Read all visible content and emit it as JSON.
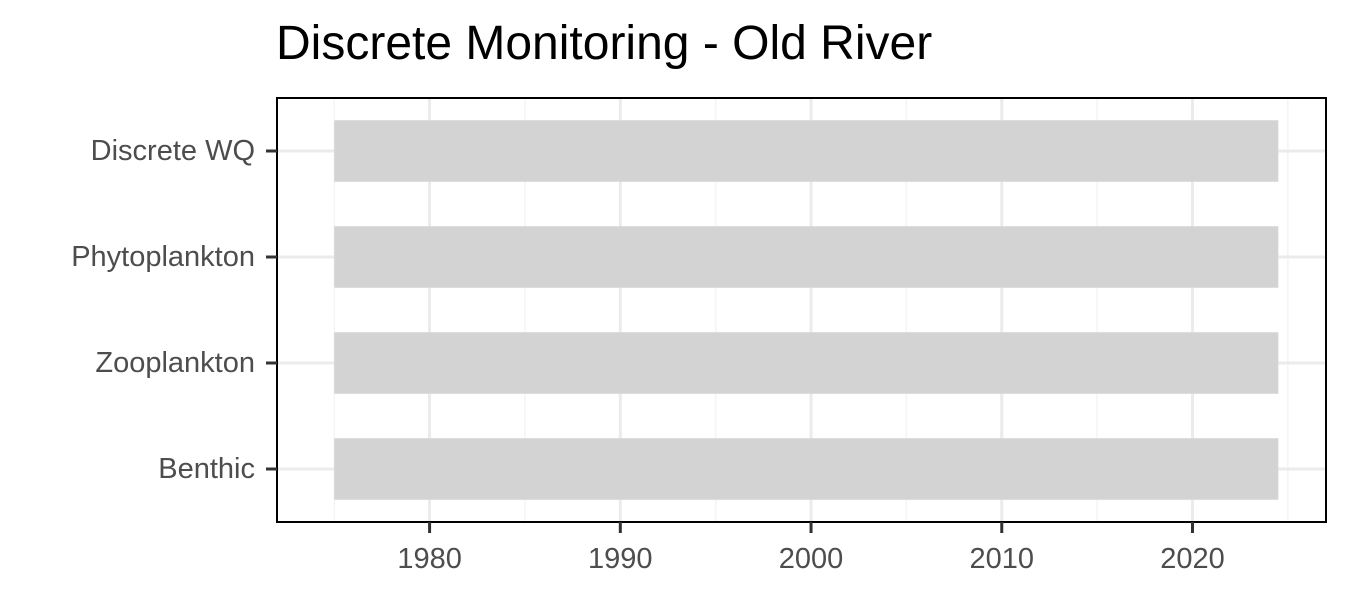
{
  "chart_data": {
    "type": "bar",
    "orientation": "horizontal-range",
    "title": "Discrete Monitoring - Old River",
    "xlabel": "",
    "ylabel": "",
    "categories": [
      "Discrete WQ",
      "Phytoplankton",
      "Zooplankton",
      "Benthic"
    ],
    "series": [
      {
        "ranges": [
          {
            "category": "Discrete WQ",
            "start": 1975,
            "end": 2024.5
          },
          {
            "category": "Phytoplankton",
            "start": 1975,
            "end": 2024.5
          },
          {
            "category": "Zooplankton",
            "start": 1975,
            "end": 2024.5
          },
          {
            "category": "Benthic",
            "start": 1975,
            "end": 2024.5
          }
        ]
      }
    ],
    "xlim": [
      1972,
      2027
    ],
    "x_ticks": [
      1980,
      1990,
      2000,
      2010,
      2020
    ],
    "x_tick_labels": [
      "1980",
      "1990",
      "2000",
      "2010",
      "2020"
    ],
    "grid": true,
    "legend": "none",
    "colors": {
      "bar": "#d3d3d3",
      "grid_major": "#ebebeb",
      "grid_minor": "#f4f4f4",
      "panel_border": "#000000",
      "tick_text": "#4d4d4d",
      "tick_mark": "#333333"
    }
  }
}
